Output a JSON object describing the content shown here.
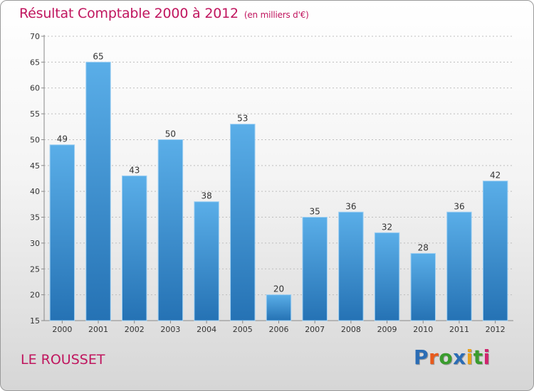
{
  "chart_data": {
    "type": "bar",
    "title": "Résultat Comptable 2000 à 2012",
    "unit": "(en milliers d'€)",
    "categories": [
      "2000",
      "2001",
      "2002",
      "2003",
      "2004",
      "2005",
      "2006",
      "2007",
      "2008",
      "2009",
      "2010",
      "2011",
      "2012"
    ],
    "values": [
      49,
      65,
      43,
      50,
      38,
      53,
      20,
      35,
      36,
      32,
      28,
      36,
      42
    ],
    "ylim": [
      15,
      70
    ],
    "yticks": [
      15,
      20,
      25,
      30,
      35,
      40,
      45,
      50,
      55,
      60,
      65,
      70
    ],
    "grid": true,
    "xlabel": "",
    "ylabel": ""
  },
  "commune": "LE ROUSSET",
  "logo": {
    "letters": [
      {
        "ch": "P",
        "color": "#2b6db5"
      },
      {
        "ch": "r",
        "color": "#e85a1c"
      },
      {
        "ch": "o",
        "color": "#3a9c2e"
      },
      {
        "ch": "x",
        "color": "#2b6db5"
      },
      {
        "ch": "i",
        "color": "#e8a21c"
      },
      {
        "ch": "t",
        "color": "#3a9c2e"
      },
      {
        "ch": "i",
        "color": "#d0246e"
      }
    ]
  },
  "colors": {
    "title": "#c0155e",
    "bar_top": "#5aaee8",
    "bar_bottom": "#2572b4"
  }
}
